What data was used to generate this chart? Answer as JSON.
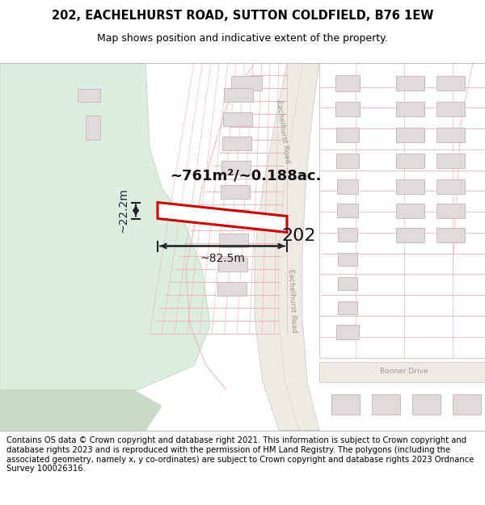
{
  "title_line1": "202, EACHELHURST ROAD, SUTTON COLDFIELD, B76 1EW",
  "title_line2": "Map shows position and indicative extent of the property.",
  "footer_text": "Contains OS data © Crown copyright and database right 2021. This information is subject to Crown copyright and database rights 2023 and is reproduced with the permission of HM Land Registry. The polygons (including the associated geometry, namely x, y co-ordinates) are subject to Crown copyright and database rights 2023 Ordnance Survey 100026316.",
  "bg_color": "#f7f4f0",
  "green_color": "#dceee0",
  "green_edge": "#c8dcc8",
  "road_bg": "#e8e0d8",
  "road_line_color": "#f0b8b8",
  "road_border_color": "#cccccc",
  "building_fill": "#e0dada",
  "building_edge": "#ccbbbb",
  "plot_color": "#cc0000",
  "dim_color": "#222222",
  "label_color": "#111111",
  "road_text_color": "#999990",
  "area_label": "~761m²/~0.188ac.",
  "width_label": "~82.5m",
  "height_label": "~22.2m",
  "number_label": "202",
  "road_label_1": "Eachelhurst Road",
  "road_label_2": "Bonner Drive",
  "title_fontsize": 10.5,
  "subtitle_fontsize": 9,
  "footer_fontsize": 7.2,
  "area_fontsize": 13,
  "dim_fontsize": 10,
  "num_fontsize": 16,
  "road_fontsize": 6.5
}
